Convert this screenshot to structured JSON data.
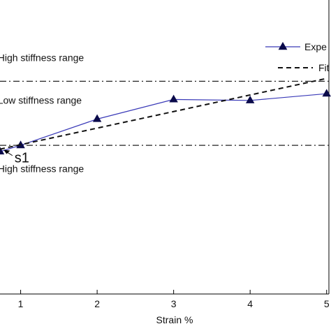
{
  "chart_data": {
    "type": "line",
    "title": "",
    "xlabel": "Strain %",
    "ylabel": "",
    "xlim": [
      0.73,
      5.03
    ],
    "ylim": [
      -3.15,
      3.0
    ],
    "grid": false,
    "legend_position": "top-right",
    "x_ticks": [
      1,
      2,
      3,
      4,
      5
    ],
    "x_tick_labels": [
      "1",
      "2",
      "3",
      "4",
      "5"
    ],
    "series": [
      {
        "name": "Expe",
        "style": "solid-with-triangle-markers",
        "color": "#3a3ab8",
        "marker_color": "#0a0a4a",
        "x": [
          0.73,
          1.0,
          2.0,
          3.0,
          4.0,
          5.0
        ],
        "y": [
          -0.17,
          -0.04,
          0.51,
          0.92,
          0.9,
          1.04
        ]
      },
      {
        "name": "Fit",
        "style": "dashed",
        "color": "#111111",
        "x": [
          0.73,
          5.0
        ],
        "y": [
          -0.12,
          1.36
        ]
      }
    ],
    "reference_lines": [
      {
        "y": 1.3,
        "style": "dash-dot"
      },
      {
        "y": -0.04,
        "style": "dash-dot"
      }
    ],
    "region_labels": [
      {
        "text": "High stiffness range",
        "x": 0.7,
        "y": 1.72
      },
      {
        "text": "Low stiffness range",
        "x": 0.7,
        "y": 0.83
      },
      {
        "text": "High stiffness range",
        "x": 0.7,
        "y": -0.6
      }
    ],
    "annotations": [
      {
        "text": "s1",
        "point_x": 0.77,
        "point_y": -0.12,
        "label_x": 0.92,
        "label_y": -0.4
      }
    ]
  }
}
